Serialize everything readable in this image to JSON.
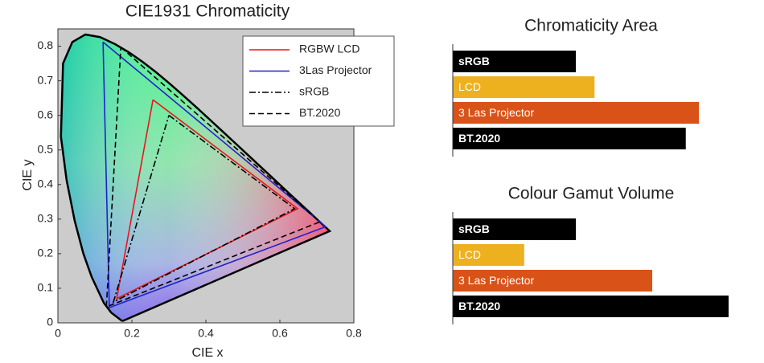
{
  "chart_data": [
    {
      "type": "line",
      "title": "CIE1931 Chromaticity",
      "xlabel": "CIE x",
      "ylabel": "CIE y",
      "xlim": [
        0,
        0.8
      ],
      "ylim": [
        0,
        0.85
      ],
      "xticks": [
        0,
        0.2,
        0.4,
        0.6,
        0.8
      ],
      "yticks": [
        0,
        0.1,
        0.2,
        0.3,
        0.4,
        0.5,
        0.6,
        0.7,
        0.8
      ],
      "legend": "upper right",
      "boundary": {
        "color": "#000000",
        "x": [
          0.1741,
          0.144,
          0.1241,
          0.0913,
          0.0687,
          0.0454,
          0.0235,
          0.0082,
          0.0139,
          0.0389,
          0.0743,
          0.1142,
          0.1547,
          0.1929,
          0.2296,
          0.2658,
          0.3016,
          0.3373,
          0.3731,
          0.4087,
          0.4441,
          0.4788,
          0.5125,
          0.5448,
          0.5752,
          0.6029,
          0.627,
          0.6482,
          0.6658,
          0.6801,
          0.6915,
          0.7006,
          0.7347,
          0.1741
        ],
        "values": [
          0.005,
          0.0297,
          0.0578,
          0.1327,
          0.2007,
          0.295,
          0.4127,
          0.5384,
          0.7502,
          0.812,
          0.8338,
          0.8262,
          0.8059,
          0.7816,
          0.7543,
          0.7243,
          0.6923,
          0.6589,
          0.6245,
          0.5896,
          0.5547,
          0.5202,
          0.4866,
          0.4544,
          0.4242,
          0.3965,
          0.3725,
          0.3514,
          0.334,
          0.3197,
          0.3083,
          0.2993,
          0.2653,
          0.005
        ]
      },
      "series": [
        {
          "name": "RGBW LCD",
          "color": "#e8161b",
          "style": "solid",
          "x": [
            0.257,
            0.648,
            0.159,
            0.257
          ],
          "values": [
            0.645,
            0.33,
            0.07,
            0.645
          ]
        },
        {
          "name": "3Las Projector",
          "color": "#1f22c8",
          "style": "solid",
          "x": [
            0.122,
            0.724,
            0.139,
            0.122
          ],
          "values": [
            0.812,
            0.278,
            0.044,
            0.812
          ]
        },
        {
          "name": "sRGB",
          "color": "#000000",
          "style": "dashdot",
          "x": [
            0.3,
            0.64,
            0.15,
            0.3
          ],
          "values": [
            0.6,
            0.33,
            0.06,
            0.6
          ]
        },
        {
          "name": "BT.2020",
          "color": "#000000",
          "style": "dashed",
          "x": [
            0.17,
            0.708,
            0.131,
            0.17
          ],
          "values": [
            0.797,
            0.292,
            0.046,
            0.797
          ]
        }
      ]
    },
    {
      "type": "bar",
      "orientation": "horizontal",
      "title": "Chromaticity Area",
      "categories": [
        "sRGB",
        "LCD",
        "3 Las Projector",
        "BT.2020"
      ],
      "values": [
        0.112,
        0.129,
        0.224,
        0.212
      ],
      "colors": [
        "#000000",
        "#edb120",
        "#d95319",
        "#000000"
      ],
      "xlim": [
        0,
        0.27
      ]
    },
    {
      "type": "bar",
      "orientation": "horizontal",
      "title": "Colour Gamut Volume",
      "categories": [
        "sRGB",
        "LCD",
        "3 Las Projector",
        "BT.2020"
      ],
      "values": [
        1,
        0.58,
        1.62,
        2.24
      ],
      "colors": [
        "#000000",
        "#edb120",
        "#d95319",
        "#000000"
      ],
      "xlim": [
        0,
        2.41
      ]
    }
  ]
}
